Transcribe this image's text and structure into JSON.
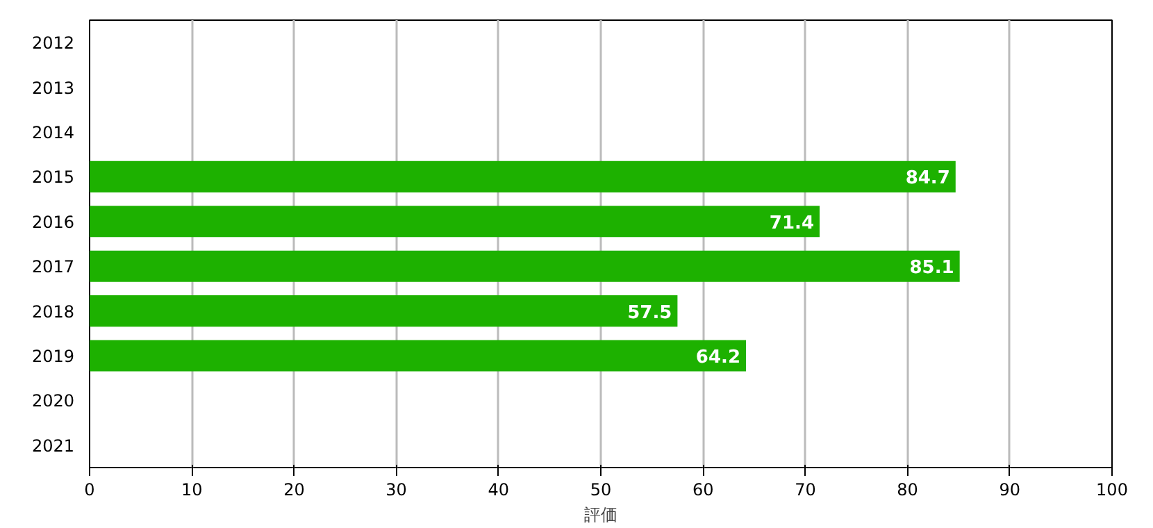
{
  "chart_data": {
    "type": "bar",
    "orientation": "horizontal",
    "xlabel": "評価",
    "categories": [
      "2012",
      "2013",
      "2014",
      "2015",
      "2016",
      "2017",
      "2018",
      "2019",
      "2020",
      "2021"
    ],
    "values": [
      null,
      null,
      null,
      84.7,
      71.4,
      85.1,
      57.5,
      64.2,
      null,
      null
    ],
    "color": "#1db100",
    "xlim": [
      0,
      100
    ],
    "xticks": [
      0,
      10,
      20,
      30,
      40,
      50,
      60,
      70,
      80,
      90,
      100
    ],
    "grid": "x",
    "data_labels": true
  }
}
